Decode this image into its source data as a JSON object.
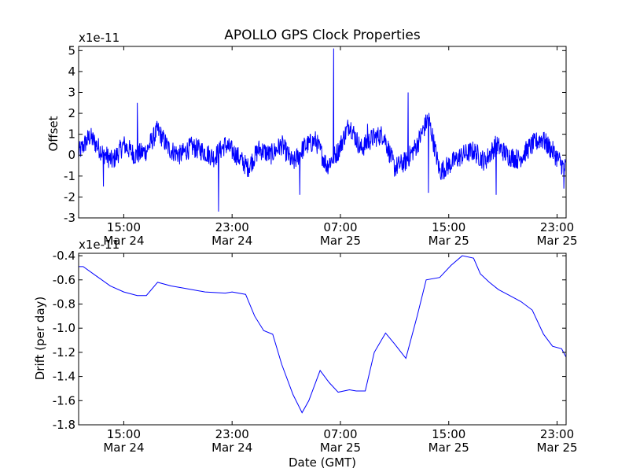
{
  "title": "APOLLO GPS Clock Properties",
  "chart_data": [
    {
      "type": "line",
      "ylabel": "Offset",
      "y_multiplier": "x1e-11",
      "ylim": [
        -3,
        5.2
      ],
      "y_ticks": [
        "-3",
        "-2",
        "-1",
        "0",
        "1",
        "2",
        "3",
        "4",
        "5"
      ],
      "x_ticks": [
        {
          "time": "15:00",
          "date": "Mar 24"
        },
        {
          "time": "23:00",
          "date": "Mar 24"
        },
        {
          "time": "07:00",
          "date": "Mar 25"
        },
        {
          "time": "15:00",
          "date": "Mar 25"
        },
        {
          "time": "23:00",
          "date": "Mar 25"
        }
      ],
      "x_start": "Mar 24 11:40",
      "x_end": "Mar 25 23:40",
      "line_color": "#0000ff",
      "series": [
        {
          "x": [
            "Mar 24 11:40",
            "Mar 24 12:30",
            "Mar 24 13:20",
            "Mar 24 14:10",
            "Mar 24 15:00",
            "Mar 24 15:50",
            "Mar 24 16:40",
            "Mar 24 17:30",
            "Mar 24 18:20",
            "Mar 24 19:10",
            "Mar 24 20:00",
            "Mar 24 20:50",
            "Mar 24 21:40",
            "Mar 24 22:30",
            "Mar 24 23:20",
            "Mar 25 00:10",
            "Mar 25 01:00",
            "Mar 25 01:50",
            "Mar 25 02:40",
            "Mar 25 03:30",
            "Mar 25 04:20",
            "Mar 25 05:10",
            "Mar 25 06:00",
            "Mar 25 06:50",
            "Mar 25 07:40",
            "Mar 25 08:30",
            "Mar 25 09:20",
            "Mar 25 10:10",
            "Mar 25 11:00",
            "Mar 25 11:50",
            "Mar 25 12:40",
            "Mar 25 13:30",
            "Mar 25 14:20",
            "Mar 25 15:10",
            "Mar 25 16:00",
            "Mar 25 16:50",
            "Mar 25 17:40",
            "Mar 25 18:30",
            "Mar 25 19:20",
            "Mar 25 20:10",
            "Mar 25 21:00",
            "Mar 25 21:50",
            "Mar 25 22:40",
            "Mar 25 23:30"
          ],
          "y": [
            0.1,
            0.9,
            0.2,
            -0.3,
            0.5,
            0.0,
            0.2,
            1.2,
            0.3,
            0.0,
            0.4,
            0.2,
            -0.1,
            0.5,
            0.0,
            -0.6,
            0.3,
            0.0,
            0.5,
            -0.4,
            0.4,
            0.7,
            -0.5,
            0.2,
            1.5,
            0.3,
            0.8,
            1.0,
            -0.6,
            -0.3,
            0.5,
            1.8,
            -0.8,
            -0.4,
            0.0,
            0.2,
            -0.3,
            0.5,
            0.0,
            -0.2,
            0.4,
            0.8,
            0.2,
            -0.6
          ],
          "noise_amplitude": 0.5,
          "extremes": [
            {
              "x": "Mar 24 13:30",
              "y": -1.5
            },
            {
              "x": "Mar 24 16:00",
              "y": 2.5
            },
            {
              "x": "Mar 24 22:00",
              "y": -2.7
            },
            {
              "x": "Mar 25 04:00",
              "y": -1.9
            },
            {
              "x": "Mar 25 06:30",
              "y": 5.1
            },
            {
              "x": "Mar 25 09:00",
              "y": 1.5
            },
            {
              "x": "Mar 25 12:00",
              "y": 3.0
            },
            {
              "x": "Mar 25 13:30",
              "y": -1.8
            },
            {
              "x": "Mar 25 18:30",
              "y": -1.9
            },
            {
              "x": "Mar 25 22:00",
              "y": 1.1
            },
            {
              "x": "Mar 25 23:30",
              "y": -1.6
            }
          ]
        }
      ]
    },
    {
      "type": "line",
      "ylabel": "Drift (per day)",
      "xlabel": "Date (GMT)",
      "y_multiplier": "x1e-11",
      "ylim": [
        -1.8,
        -0.38
      ],
      "y_ticks": [
        "-1.8",
        "-1.6",
        "-1.4",
        "-1.2",
        "-1.0",
        "-0.8",
        "-0.6",
        "-0.4"
      ],
      "x_ticks": [
        {
          "time": "15:00",
          "date": "Mar 24"
        },
        {
          "time": "23:00",
          "date": "Mar 24"
        },
        {
          "time": "07:00",
          "date": "Mar 25"
        },
        {
          "time": "15:00",
          "date": "Mar 25"
        },
        {
          "time": "23:00",
          "date": "Mar 25"
        }
      ],
      "x_start": "Mar 24 11:40",
      "x_end": "Mar 25 23:40",
      "line_color": "#0000ff",
      "series": [
        {
          "x": [
            "Mar 24 11:40",
            "Mar 24 12:00",
            "Mar 24 13:00",
            "Mar 24 14:00",
            "Mar 24 15:00",
            "Mar 24 16:00",
            "Mar 24 16:40",
            "Mar 24 17:30",
            "Mar 24 18:30",
            "Mar 24 19:30",
            "Mar 24 21:00",
            "Mar 24 22:30",
            "Mar 24 23:00",
            "Mar 25 00:00",
            "Mar 25 00:40",
            "Mar 25 01:20",
            "Mar 25 02:00",
            "Mar 25 02:40",
            "Mar 25 03:30",
            "Mar 25 04:10",
            "Mar 25 04:40",
            "Mar 25 05:30",
            "Mar 25 06:10",
            "Mar 25 06:50",
            "Mar 25 07:40",
            "Mar 25 08:10",
            "Mar 25 08:50",
            "Mar 25 09:30",
            "Mar 25 10:20",
            "Mar 25 11:00",
            "Mar 25 11:50",
            "Mar 25 12:40",
            "Mar 25 13:20",
            "Mar 25 14:20",
            "Mar 25 15:10",
            "Mar 25 16:00",
            "Mar 25 16:50",
            "Mar 25 17:20",
            "Mar 25 18:00",
            "Mar 25 18:40",
            "Mar 25 19:30",
            "Mar 25 20:20",
            "Mar 25 21:10",
            "Mar 25 22:00",
            "Mar 25 22:40",
            "Mar 25 23:20",
            "Mar 25 23:40"
          ],
          "y": [
            -0.49,
            -0.49,
            -0.57,
            -0.65,
            -0.7,
            -0.73,
            -0.73,
            -0.62,
            -0.65,
            -0.67,
            -0.7,
            -0.71,
            -0.7,
            -0.72,
            -0.9,
            -1.02,
            -1.05,
            -1.3,
            -1.55,
            -1.7,
            -1.6,
            -1.35,
            -1.45,
            -1.53,
            -1.51,
            -1.52,
            -1.52,
            -1.2,
            -1.04,
            -1.13,
            -1.25,
            -0.9,
            -0.6,
            -0.58,
            -0.48,
            -0.4,
            -0.42,
            -0.55,
            -0.62,
            -0.68,
            -0.73,
            -0.78,
            -0.85,
            -1.05,
            -1.15,
            -1.17,
            -1.24
          ]
        }
      ]
    }
  ]
}
